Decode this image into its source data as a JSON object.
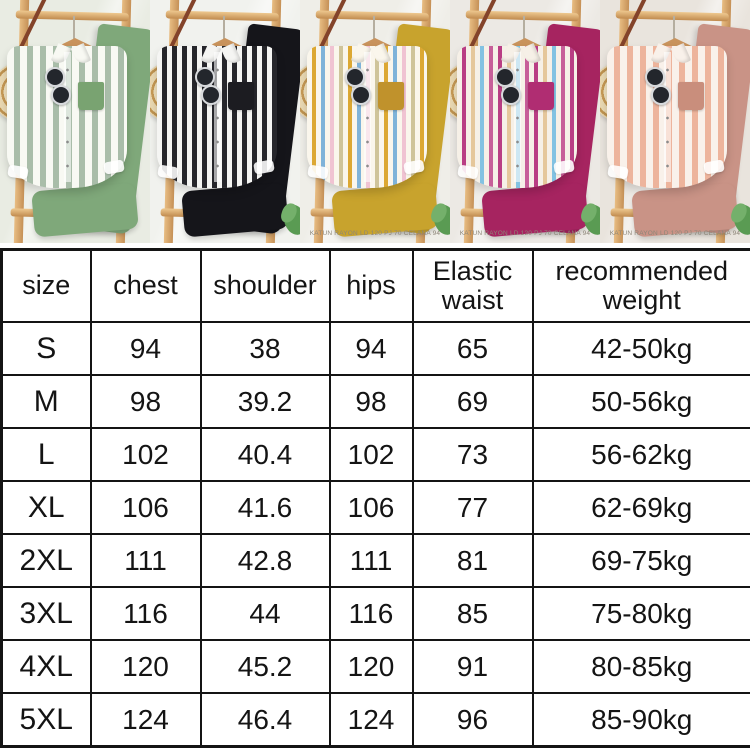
{
  "photo_strip": {
    "caption_text": "KATUN RAYON LD 120 PJ 70 CELANA 94",
    "photos": [
      {
        "id": "green",
        "label": "green striped shirt and pants set",
        "wall": "#e9ece3",
        "shirt_base": "#f8f9f3",
        "stripes": [
          "#a9bda9"
        ],
        "stripe_widths": [
          7,
          6
        ],
        "pocket": "#79a371",
        "pants": "#7fa87a",
        "has_caption": false,
        "leaf": false
      },
      {
        "id": "black",
        "label": "black striped shirt and pants set",
        "wall": "#f1f2ee",
        "shirt_base": "#f5f5f3",
        "stripes": [
          "#26262b"
        ],
        "stripe_widths": [
          5,
          5
        ],
        "pocket": "#1c1c21",
        "pants": "#15151a",
        "has_caption": false,
        "leaf": true
      },
      {
        "id": "yellow",
        "label": "yellow multicolor striped shirt and mustard pants set",
        "wall": "#efeee8",
        "shirt_base": "#faf6ec",
        "stripes": [
          "#dca833",
          "#7fb3d9",
          "#f0c3d2",
          "#cfc49a"
        ],
        "stripe_widths": [
          5,
          4
        ],
        "pocket": "#c0922c",
        "pants": "#c8a32d",
        "has_caption": true,
        "leaf": true
      },
      {
        "id": "magenta",
        "label": "magenta multicolor striped shirt and magenta pants set",
        "wall": "#ece9e4",
        "shirt_base": "#f6f0e7",
        "stripes": [
          "#b93e84",
          "#e5c79b",
          "#82c2e2",
          "#c75f99"
        ],
        "stripe_widths": [
          5,
          4
        ],
        "pocket": "#b02d72",
        "pants": "#a62460",
        "has_caption": true,
        "leaf": true
      },
      {
        "id": "pink",
        "label": "pink striped shirt and dusty pink pants set",
        "wall": "#e9e4dd",
        "shirt_base": "#f9f1ea",
        "stripes": [
          "#edb49c"
        ],
        "stripe_widths": [
          7,
          6
        ],
        "pocket": "#c98e7c",
        "pants": "#c99386",
        "has_caption": true,
        "leaf": true
      }
    ]
  },
  "size_chart": {
    "headers": [
      "size",
      "chest",
      "shoulder",
      "hips",
      "Elastic waist",
      "recommended weight"
    ],
    "rows": [
      [
        "S",
        "94",
        "38",
        "94",
        "65",
        "42-50kg"
      ],
      [
        "M",
        "98",
        "39.2",
        "98",
        "69",
        "50-56kg"
      ],
      [
        "L",
        "102",
        "40.4",
        "102",
        "73",
        "56-62kg"
      ],
      [
        "XL",
        "106",
        "41.6",
        "106",
        "77",
        "62-69kg"
      ],
      [
        "2XL",
        "111",
        "42.8",
        "111",
        "81",
        "69-75kg"
      ],
      [
        "3XL",
        "116",
        "44",
        "116",
        "85",
        "75-80kg"
      ],
      [
        "4XL",
        "120",
        "45.2",
        "120",
        "91",
        "80-85kg"
      ],
      [
        "5XL",
        "124",
        "46.4",
        "124",
        "96",
        "85-90kg"
      ]
    ]
  },
  "colors": {
    "table_border": "#141414",
    "table_text": "#141414",
    "caption_text_color": "#8d8678",
    "ladder_wood": "#d9ab70",
    "hanger_wood": "#c9935c",
    "strap_leather": "#83432a",
    "bag_rattan": "#e8d6ae",
    "leaf_green": "#5a9b53"
  }
}
